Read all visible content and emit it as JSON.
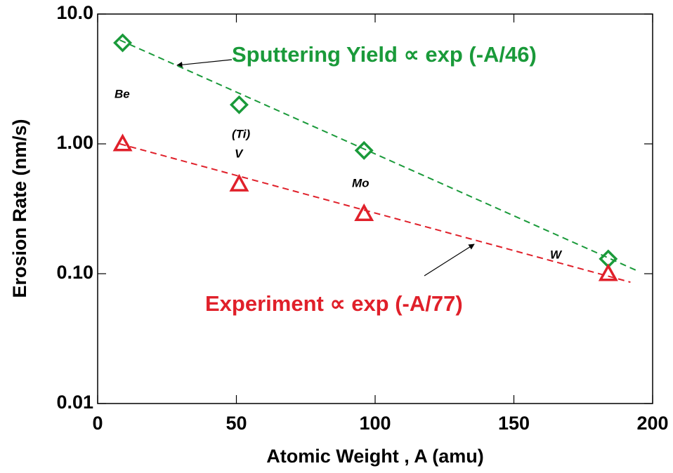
{
  "chart_data": {
    "type": "scatter",
    "xlabel": "Atomic Weight , A (amu)",
    "ylabel": "Erosion Rate (nm/s)",
    "xlim": [
      0,
      200
    ],
    "xticks": [
      0,
      50,
      100,
      150,
      200
    ],
    "ylim": [
      0.01,
      10
    ],
    "log_y": true,
    "yticks": [
      {
        "value": 0.01,
        "label": "0.01"
      },
      {
        "value": 0.1,
        "label": "0.10"
      },
      {
        "value": 1,
        "label": "1.00"
      },
      {
        "value": 10,
        "label": "10.0"
      }
    ],
    "series": [
      {
        "marker": "diamond",
        "color": "#1a9a3a",
        "x": [
          9,
          51,
          96,
          184
        ],
        "values": [
          6.0,
          2.0,
          0.89,
          0.13
        ]
      },
      {
        "marker": "triangle",
        "color": "#e0202a",
        "x": [
          9,
          51,
          96,
          184
        ],
        "values": [
          1.0,
          0.49,
          0.29,
          0.1
        ]
      },
      {
        "style": "dashed",
        "color": "#1a9a3a",
        "x": [
          8,
          195
        ],
        "values": [
          6.3,
          0.104
        ]
      },
      {
        "style": "dashed",
        "color": "#e0202a",
        "x": [
          8,
          192
        ],
        "values": [
          1.0,
          0.086
        ]
      }
    ],
    "annotations": [
      {
        "text": "Sputtering Yield ∝ exp (-A/46)",
        "color": "#1a9a3a"
      },
      {
        "text": "Experiment ∝ exp (-A/77)",
        "color": "#e0202a"
      },
      {
        "text": "Be"
      },
      {
        "text": "(Ti)"
      },
      {
        "text": "V"
      },
      {
        "text": "Mo"
      },
      {
        "text": "W"
      }
    ]
  }
}
